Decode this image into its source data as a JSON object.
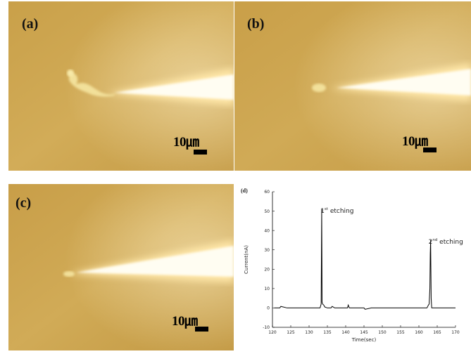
{
  "panels": [
    {
      "label": "(a)",
      "scale": "10㎛"
    },
    {
      "label": "(b)",
      "scale": "10㎛"
    },
    {
      "label": "(c)",
      "scale": "10㎛"
    }
  ],
  "chart_panel_label": "(d)",
  "chart_data": {
    "type": "line",
    "xlabel": "Time(sec)",
    "ylabel": "Current(nA)",
    "xlim": [
      120,
      170
    ],
    "ylim": [
      -10,
      60
    ],
    "xticks": [
      120,
      125,
      130,
      135,
      140,
      145,
      150,
      155,
      160,
      165,
      170
    ],
    "yticks": [
      -10,
      0,
      10,
      20,
      30,
      40,
      50,
      60
    ],
    "grid": false,
    "annotations": [
      {
        "text_main": "1",
        "text_sup": "st",
        "text_rest": " etching",
        "x": 133.5,
        "y": 51
      },
      {
        "text_main": "2",
        "text_sup": "nd",
        "text_rest": " etching",
        "x": 163,
        "y": 35
      }
    ],
    "x": [
      120.5,
      122,
      122.3,
      124,
      127,
      130,
      133,
      133.3,
      133.45,
      133.55,
      133.7,
      134,
      134.3,
      135,
      136,
      136.3,
      137,
      138,
      140.5,
      140.7,
      141,
      142,
      144,
      145,
      145.3,
      147,
      150,
      153,
      156,
      159,
      162.2,
      162.6,
      162.8,
      163.0,
      163.1,
      163.2,
      163.35,
      163.5,
      164,
      166,
      168,
      170
    ],
    "y": [
      0,
      0,
      0.8,
      0,
      0,
      0,
      0,
      2,
      51,
      3,
      2,
      1.5,
      0.5,
      0,
      0,
      0.8,
      0,
      0,
      0,
      1.5,
      0,
      0,
      0,
      0,
      -0.7,
      0,
      0,
      0,
      0,
      0,
      0,
      1.5,
      2,
      10,
      28,
      35,
      5,
      0,
      0,
      0,
      0,
      0
    ]
  }
}
